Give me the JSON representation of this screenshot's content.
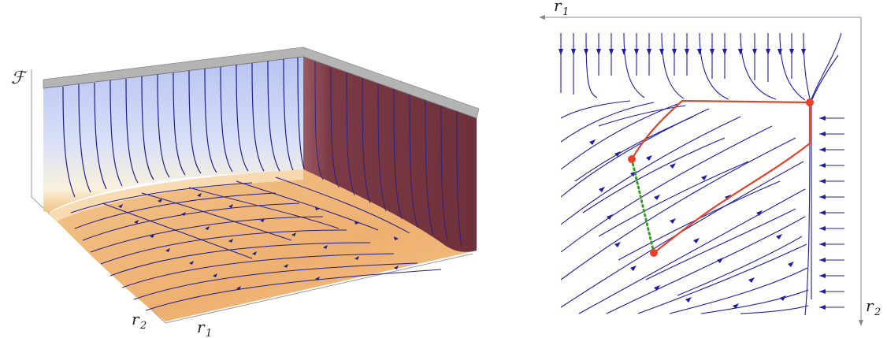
{
  "left_plot": {
    "labels": {
      "z_axis": "ℱ",
      "r1": "r",
      "r1_sub": "1",
      "r2": "r",
      "r2_sub": "2"
    },
    "colors": {
      "wall_back": "#c8d2f2",
      "wall_right": "#7b3a45",
      "floor": "#f0b878",
      "top_plate": "#a8a8a8",
      "streamline": "#1e1e8c"
    }
  },
  "right_plot": {
    "labels": {
      "r1": "r",
      "r1_sub": "1",
      "r2": "r",
      "r2_sub": "2"
    },
    "colors": {
      "streamline": "#1c1ca8",
      "path": "#e0452a",
      "dotted": "#3a9a2a",
      "point": "#e8402a"
    }
  }
}
